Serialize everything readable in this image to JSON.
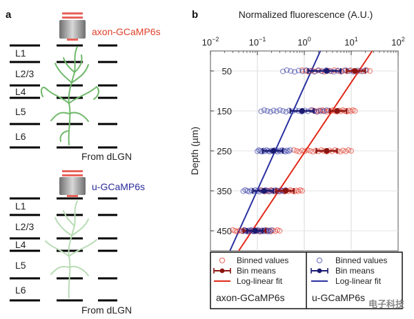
{
  "panel_a": {
    "letter": "a",
    "top": {
      "indicator": "axon-GCaMP6s",
      "layers": [
        "L1",
        "L2/3",
        "L4",
        "L5",
        "L6"
      ],
      "source": "From dLGN"
    },
    "bottom": {
      "indicator": "u-GCaMP6s",
      "layers": [
        "L1",
        "L2/3",
        "L4",
        "L5",
        "L6"
      ],
      "source": "From dLGN"
    }
  },
  "chart_data": {
    "letter": "b",
    "type": "scatter",
    "title": "Normalized fluorescence (A.U.)",
    "xlabel": "Normalized fluorescence (A.U.)",
    "ylabel": "Depth (µm)",
    "xscale": "log",
    "xlim": [
      0.01,
      100
    ],
    "xticks": [
      0.01,
      0.1,
      1,
      10,
      100
    ],
    "xtick_labels": [
      {
        "base": "10",
        "exp": "−2"
      },
      {
        "base": "10",
        "exp": "−1"
      },
      {
        "base": "10",
        "exp": "0"
      },
      {
        "base": "10",
        "exp": "1"
      },
      {
        "base": "10",
        "exp": "2"
      }
    ],
    "ylim": [
      500,
      0
    ],
    "yticks": [
      50,
      150,
      250,
      350,
      450
    ],
    "ytick_labels": [
      "50",
      "150",
      "250",
      "350",
      "450"
    ],
    "grid": true,
    "axis_position": "x-axis on top",
    "colors": {
      "axon": "#e02818",
      "u": "#2830a0",
      "axon_dark": "#8b1510",
      "u_dark": "#1a1a70"
    },
    "series": [
      {
        "name": "axon-GCaMP6s",
        "color": "#e02818",
        "binned": [
          {
            "depth": 50,
            "min": 0.9,
            "max": 25
          },
          {
            "depth": 150,
            "min": 1.5,
            "max": 12
          },
          {
            "depth": 250,
            "min": 0.6,
            "max": 10
          },
          {
            "depth": 350,
            "min": 0.12,
            "max": 0.9
          },
          {
            "depth": 450,
            "min": 0.03,
            "max": 0.3
          }
        ],
        "bin_means": [
          {
            "depth": 50,
            "mean": 12,
            "lo": 8,
            "hi": 20
          },
          {
            "depth": 150,
            "mean": 5,
            "lo": 3.5,
            "hi": 8
          },
          {
            "depth": 250,
            "mean": 3,
            "lo": 1.8,
            "hi": 5
          },
          {
            "depth": 350,
            "mean": 0.4,
            "lo": 0.25,
            "hi": 0.6
          },
          {
            "depth": 450,
            "mean": 0.09,
            "lo": 0.05,
            "hi": 0.15
          }
        ],
        "fit": {
          "x": [
            0.04,
            28
          ],
          "depth": [
            500,
            0
          ]
        }
      },
      {
        "name": "u-GCaMP6s",
        "color": "#2830a0",
        "binned": [
          {
            "depth": 50,
            "min": 0.35,
            "max": 20
          },
          {
            "depth": 150,
            "min": 0.12,
            "max": 3
          },
          {
            "depth": 250,
            "min": 0.1,
            "max": 0.5
          },
          {
            "depth": 350,
            "min": 0.05,
            "max": 0.4
          },
          {
            "depth": 450,
            "min": 0.05,
            "max": 0.2
          }
        ],
        "bin_means": [
          {
            "depth": 50,
            "mean": 3,
            "lo": 1.2,
            "hi": 6
          },
          {
            "depth": 150,
            "mean": 0.9,
            "lo": 0.5,
            "hi": 1.6
          },
          {
            "depth": 250,
            "mean": 0.22,
            "lo": 0.13,
            "hi": 0.35
          },
          {
            "depth": 350,
            "mean": 0.14,
            "lo": 0.08,
            "hi": 0.22
          },
          {
            "depth": 450,
            "mean": 0.09,
            "lo": 0.06,
            "hi": 0.13
          }
        ],
        "fit": {
          "x": [
            0.026,
            2.2
          ],
          "depth": [
            500,
            0
          ]
        }
      }
    ],
    "legend": {
      "placement": "bottom",
      "groups": [
        {
          "title": "axon-GCaMP6s",
          "color": "#e02818",
          "dark": "#8b1510",
          "entries": [
            "Binned values",
            "Bin means",
            "Log-linear fit"
          ]
        },
        {
          "title": "u-GCaMP6s",
          "color": "#2830a0",
          "dark": "#1a1a70",
          "entries": [
            "Binned values",
            "Bin means",
            "Log-linear fit"
          ]
        }
      ]
    }
  },
  "watermark": "电子科技"
}
